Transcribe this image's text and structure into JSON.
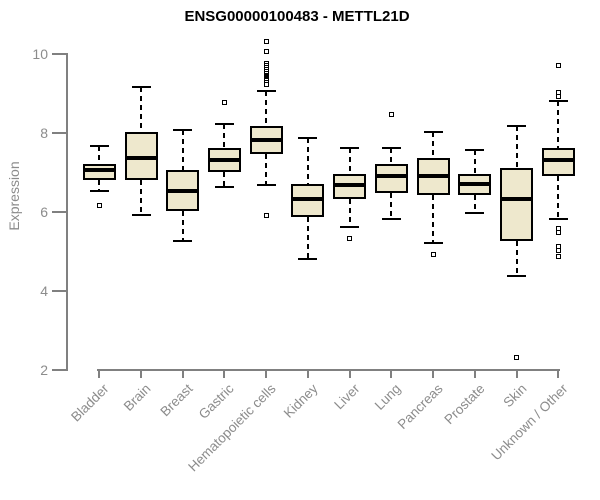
{
  "chart_data": {
    "type": "boxplot",
    "title": "ENSG00000100483 - METTL21D",
    "ylabel": "Expression",
    "xlabel": "",
    "yticks": [
      2,
      4,
      6,
      8,
      10
    ],
    "ylim": [
      2,
      10.5
    ],
    "grid": false,
    "legend": "none",
    "box_fill_color": "#EEE8CD",
    "box_border_color": "#000000",
    "axis_color": "#808080",
    "tick_label_color": "#8C8C8C",
    "title_color": "#000000",
    "categories": [
      "Bladder",
      "Brain",
      "Breast",
      "Gastric",
      "Hematopoietic cells",
      "Kidney",
      "Liver",
      "Lung",
      "Pancreas",
      "Prostate",
      "Skin",
      "Unknown / Other"
    ],
    "boxes": [
      {
        "category": "Bladder",
        "min": 6.5,
        "q1": 6.8,
        "median": 7.05,
        "q3": 7.2,
        "max": 7.65,
        "outliers": [
          6.15
        ]
      },
      {
        "category": "Brain",
        "min": 5.9,
        "q1": 6.8,
        "median": 7.35,
        "q3": 8.0,
        "max": 9.15,
        "outliers": []
      },
      {
        "category": "Breast",
        "min": 5.25,
        "q1": 6.0,
        "median": 6.5,
        "q3": 7.05,
        "max": 8.05,
        "outliers": []
      },
      {
        "category": "Gastric",
        "min": 6.6,
        "q1": 7.0,
        "median": 7.3,
        "q3": 7.6,
        "max": 8.2,
        "outliers": [
          8.75
        ]
      },
      {
        "category": "Hematopoietic cells",
        "min": 6.65,
        "q1": 7.45,
        "median": 7.8,
        "q3": 8.15,
        "max": 9.05,
        "outliers": [
          9.2,
          9.3,
          9.35,
          9.4,
          9.45,
          9.5,
          9.55,
          9.6,
          9.7,
          9.75,
          10.05,
          10.3,
          5.9
        ]
      },
      {
        "category": "Kidney",
        "min": 4.8,
        "q1": 5.85,
        "median": 6.3,
        "q3": 6.7,
        "max": 7.85,
        "outliers": []
      },
      {
        "category": "Liver",
        "min": 5.6,
        "q1": 6.3,
        "median": 6.65,
        "q3": 6.95,
        "max": 7.6,
        "outliers": [
          5.3
        ]
      },
      {
        "category": "Lung",
        "min": 5.8,
        "q1": 6.45,
        "median": 6.9,
        "q3": 7.2,
        "max": 7.6,
        "outliers": [
          8.45
        ]
      },
      {
        "category": "Pancreas",
        "min": 5.2,
        "q1": 6.4,
        "median": 6.9,
        "q3": 7.35,
        "max": 8.0,
        "outliers": [
          4.9
        ]
      },
      {
        "category": "Prostate",
        "min": 5.95,
        "q1": 6.4,
        "median": 6.7,
        "q3": 6.95,
        "max": 7.55,
        "outliers": []
      },
      {
        "category": "Skin",
        "min": 4.35,
        "q1": 5.25,
        "median": 6.3,
        "q3": 7.1,
        "max": 8.15,
        "outliers": [
          2.3
        ]
      },
      {
        "category": "Unknown / Other",
        "min": 5.8,
        "q1": 6.9,
        "median": 7.3,
        "q3": 7.6,
        "max": 8.8,
        "outliers": [
          9.7,
          9.0,
          8.9,
          5.55,
          5.45,
          5.1,
          5.0,
          4.85
        ]
      }
    ]
  }
}
